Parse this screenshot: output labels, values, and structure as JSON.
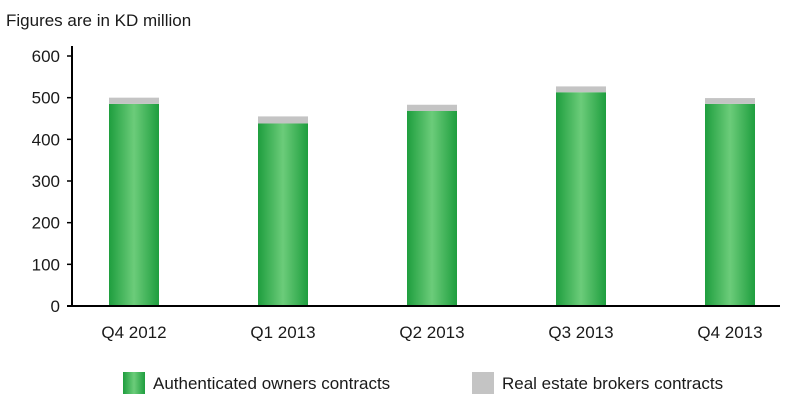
{
  "chart_data": {
    "type": "bar",
    "stacked": true,
    "subtitle": "Figures are in KD million",
    "categories": [
      "Q4 2012",
      "Q1 2013",
      "Q2 2013",
      "Q3 2013",
      "Q4 2013"
    ],
    "series": [
      {
        "name": "Authenticated owners contracts",
        "color": "#2fb04c",
        "values": [
          485,
          438,
          468,
          513,
          485
        ]
      },
      {
        "name": "Real estate brokers contracts",
        "color": "#c4c4c4",
        "values": [
          15,
          17,
          15,
          14,
          14
        ]
      }
    ],
    "ylim": [
      0,
      600
    ],
    "yticks": [
      0,
      100,
      200,
      300,
      400,
      500,
      600
    ],
    "grid": false,
    "legend_position": "bottom"
  }
}
